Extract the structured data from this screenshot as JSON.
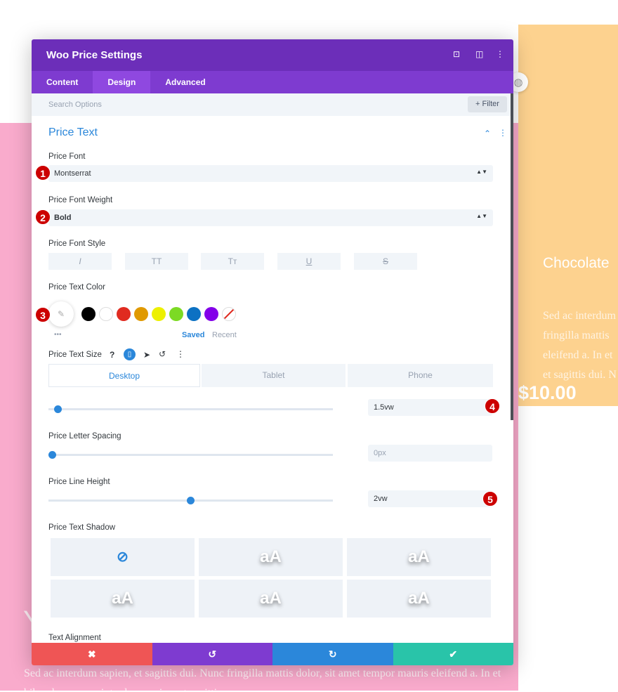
{
  "background": {
    "card_title": "Chocolate",
    "card_text": "Sed ac interdum fringilla mattis eleifend a. In et et sagittis dui. N",
    "card_price": "$10.00",
    "pink_heading": "Y",
    "pink_text": "Sed ac interdum sapien, et sagittis dui. Nunc fringilla mattis dolor, sit amet tempor mauris eleifend a. In et bibendum eros a interdum sapien, et sagittis"
  },
  "modal": {
    "title": "Woo Price Settings",
    "header_icons": [
      "focus-icon",
      "split-view-icon",
      "more-icon"
    ],
    "tabs": [
      {
        "label": "Content"
      },
      {
        "label": "Design",
        "active": true
      },
      {
        "label": "Advanced"
      }
    ],
    "search_placeholder": "Search Options",
    "filter_label": "Filter",
    "section_title": "Price Text",
    "price_font": {
      "label": "Price Font",
      "value": "Montserrat"
    },
    "price_font_weight": {
      "label": "Price Font Weight",
      "value": "Bold"
    },
    "price_font_style": {
      "label": "Price Font Style",
      "buttons": [
        "I",
        "TT",
        "Tт",
        "U",
        "S"
      ]
    },
    "price_text_color": {
      "label": "Price Text Color",
      "swatches": [
        "#000000",
        "#ffffff",
        "#e02b20",
        "#e09900",
        "#edf000",
        "#7cda24",
        "#0c71c3",
        "#8300e9"
      ],
      "saved": "Saved",
      "recent": "Recent",
      "more": "•••"
    },
    "price_text_size": {
      "label": "Price Text Size",
      "devices": [
        "Desktop",
        "Tablet",
        "Phone"
      ],
      "value": "1.5vw",
      "slider": 0.02
    },
    "letter_spacing": {
      "label": "Price Letter Spacing",
      "value": "0px",
      "placeholder": "0px",
      "slider": 0
    },
    "line_height": {
      "label": "Price Line Height",
      "value": "2vw",
      "slider": 0.5
    },
    "text_shadow": {
      "label": "Price Text Shadow",
      "preview": "aA"
    },
    "text_alignment": {
      "label": "Text Alignment"
    },
    "footer": {
      "colors": [
        "#ef5555",
        "#7e3bd0",
        "#2b87da",
        "#29c4a9"
      ]
    }
  },
  "badges": [
    "1",
    "2",
    "3",
    "4",
    "5"
  ]
}
